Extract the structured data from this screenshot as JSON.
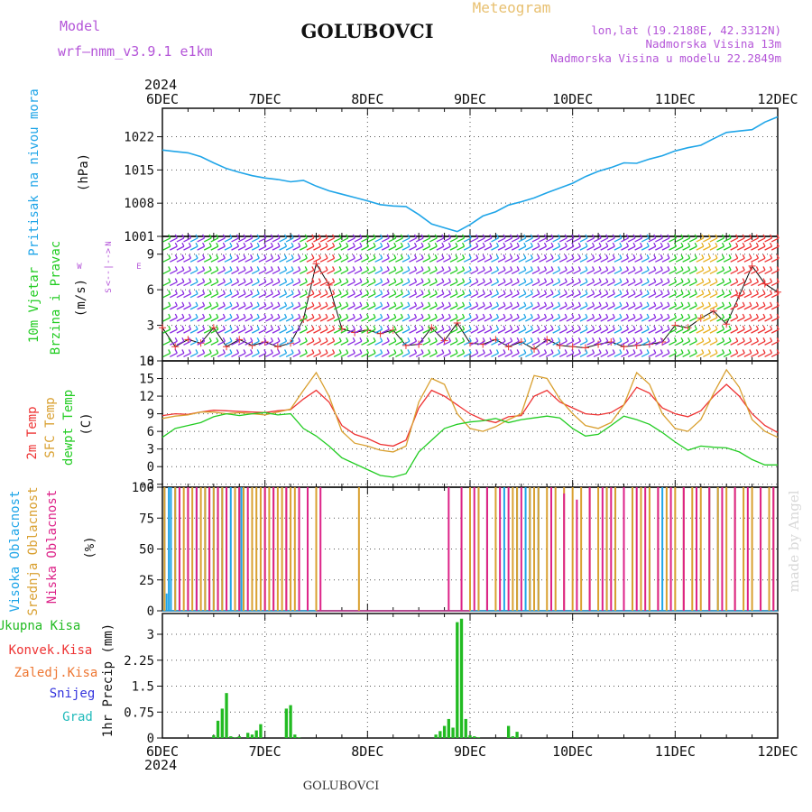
{
  "header": {
    "model_label": "Model",
    "model_name": "wrf—nmm_v3.9.1  e1km",
    "station": "GOLUBOVCI",
    "meteogram": "Meteogram",
    "lonlat": "lon,lat (19.2188E, 42.3312N)",
    "altitude": "Nadmorska Visina 13m",
    "model_altitude": "Nadmorska Visina u modelu 22.2849m",
    "footer_station": "GOLUBOVCI",
    "credit": "made by Angel"
  },
  "time_axis": {
    "year": "2024",
    "days": [
      "6DEC",
      "7DEC",
      "8DEC",
      "9DEC",
      "10DEC",
      "11DEC",
      "12DEC"
    ],
    "start_hours": 0,
    "end_hours": 144
  },
  "colors": {
    "pressure": "#1fa5e8",
    "temp2m": "#ee3333",
    "sfc": "#d9a030",
    "dewpt": "#22cc22",
    "vis": "#1fa5e8",
    "sred": "#d9a030",
    "nis": "#dd2288",
    "precip": "#22bb22",
    "label_purple": "#b455d8",
    "title_orange": "#e8c070"
  },
  "chart_data": [
    {
      "type": "line",
      "panel": "pressure",
      "ylabel_lines": [
        "Pritisak na nivou mora",
        "(hPa)"
      ],
      "ylim": [
        1001,
        1028
      ],
      "yticks": [
        1001,
        1008,
        1015,
        1022
      ],
      "grid": true,
      "series": [
        {
          "x": [
            0,
            3,
            6,
            9,
            12,
            15,
            18,
            21,
            24,
            27,
            30,
            33,
            36,
            39,
            42,
            45,
            48,
            51,
            54,
            57,
            60,
            63,
            66,
            69,
            72,
            75,
            78,
            81,
            84,
            87,
            90,
            93,
            96,
            99,
            102,
            105,
            108,
            111,
            114,
            117,
            120,
            123,
            126,
            129,
            132,
            135,
            138,
            141,
            144
          ],
          "values": [
            1019.2,
            1018.9,
            1018.6,
            1017.8,
            1016.5,
            1015.3,
            1014.5,
            1013.8,
            1013.3,
            1013.0,
            1012.5,
            1012.8,
            1011.6,
            1010.6,
            1009.9,
            1009.2,
            1008.5,
            1007.7,
            1007.4,
            1007.3,
            1005.6,
            1003.6,
            1002.8,
            1002.0,
            1003.5,
            1005.3,
            1006.2,
            1007.6,
            1008.3,
            1009.1,
            1010.2,
            1011.2,
            1012.2,
            1013.6,
            1014.7,
            1015.5,
            1016.5,
            1016.4,
            1017.3,
            1018.0,
            1019.0,
            1019.7,
            1020.2,
            1021.6,
            1022.9,
            1023.2,
            1023.5,
            1025.1,
            1026.2
          ]
        }
      ]
    },
    {
      "type": "barb",
      "panel": "wind",
      "ylabel_lines": [
        "10m Vjetar",
        "Brzina i Pravac",
        "(m/s)"
      ],
      "compass": [
        "N",
        "W",
        "E",
        "S"
      ],
      "ylim": [
        0,
        10.5
      ],
      "yticks": [
        0,
        3,
        6,
        9
      ],
      "grid": true,
      "series": [
        {
          "name": "speed",
          "x": [
            0,
            3,
            6,
            9,
            12,
            15,
            18,
            21,
            24,
            27,
            30,
            33,
            36,
            39,
            42,
            45,
            48,
            51,
            54,
            57,
            60,
            63,
            66,
            69,
            72,
            75,
            78,
            81,
            84,
            87,
            90,
            93,
            96,
            99,
            102,
            105,
            108,
            111,
            114,
            117,
            120,
            123,
            126,
            129,
            132,
            135,
            138,
            141,
            144
          ],
          "values": [
            2.8,
            1.2,
            1.8,
            1.5,
            2.8,
            1.2,
            1.8,
            1.3,
            1.6,
            1.2,
            1.5,
            3.5,
            8.2,
            6.4,
            2.7,
            2.4,
            2.6,
            2.3,
            2.6,
            1.3,
            1.4,
            2.8,
            1.7,
            3.2,
            1.5,
            1.4,
            1.8,
            1.2,
            1.6,
            1.0,
            1.8,
            1.3,
            1.2,
            1.1,
            1.4,
            1.6,
            1.2,
            1.3,
            1.4,
            1.6,
            3.0,
            2.8,
            3.6,
            4.2,
            3.1,
            5.5,
            8.0,
            6.5,
            5.8
          ]
        }
      ]
    },
    {
      "type": "line",
      "panel": "temperature",
      "ylabel_lines": [
        "2m Temp",
        "SFC Temp",
        "dewpt Temp",
        "(C)"
      ],
      "ylim": [
        -3.5,
        18
      ],
      "yticks": [
        -3,
        0,
        3,
        6,
        9,
        12,
        15,
        18
      ],
      "grid": true,
      "x": [
        0,
        3,
        6,
        9,
        12,
        15,
        18,
        21,
        24,
        27,
        30,
        33,
        36,
        39,
        42,
        45,
        48,
        51,
        54,
        57,
        60,
        63,
        66,
        69,
        72,
        75,
        78,
        81,
        84,
        87,
        90,
        93,
        96,
        99,
        102,
        105,
        108,
        111,
        114,
        117,
        120,
        123,
        126,
        129,
        132,
        135,
        138,
        141,
        144
      ],
      "series": [
        {
          "name": "2m Temp",
          "values": [
            8.7,
            9.0,
            8.9,
            9.3,
            9.6,
            9.5,
            9.4,
            9.3,
            9.2,
            9.5,
            9.7,
            11.5,
            13.0,
            11.0,
            7.0,
            5.5,
            4.8,
            3.8,
            3.5,
            4.5,
            10.0,
            13.0,
            12.0,
            10.5,
            9.0,
            8.0,
            7.5,
            8.5,
            8.7,
            12.0,
            13.0,
            11.0,
            10.0,
            9.0,
            8.8,
            9.2,
            10.5,
            13.5,
            12.5,
            10.0,
            9.0,
            8.5,
            9.5,
            12.0,
            14.0,
            12.0,
            9.0,
            7.0,
            5.8
          ]
        },
        {
          "name": "SFC Temp",
          "values": [
            8.2,
            8.6,
            8.8,
            9.3,
            9.3,
            9.0,
            9.2,
            9.0,
            8.8,
            9.3,
            9.8,
            13.0,
            16.0,
            12.0,
            6.0,
            4.0,
            3.5,
            2.8,
            2.5,
            3.5,
            11.0,
            15.0,
            14.0,
            9.0,
            6.5,
            6.0,
            6.8,
            8.0,
            9.0,
            15.5,
            15.0,
            11.5,
            9.0,
            7.0,
            6.5,
            7.5,
            10.5,
            16.0,
            14.0,
            9.0,
            6.5,
            6.0,
            8.0,
            12.5,
            16.5,
            13.5,
            8.0,
            6.0,
            5.0
          ]
        },
        {
          "name": "dewpt Temp",
          "values": [
            5.0,
            6.5,
            7.0,
            7.5,
            8.5,
            9.0,
            8.7,
            9.0,
            9.2,
            8.8,
            9.0,
            6.5,
            5.2,
            3.5,
            1.5,
            0.5,
            -0.5,
            -1.5,
            -1.8,
            -1.2,
            2.5,
            4.5,
            6.5,
            7.2,
            7.6,
            7.8,
            8.2,
            7.5,
            8.0,
            8.3,
            8.6,
            8.3,
            6.5,
            5.2,
            5.5,
            7.0,
            8.6,
            8.0,
            7.2,
            5.8,
            4.2,
            2.8,
            3.5,
            3.3,
            3.2,
            2.5,
            1.2,
            0.3,
            0.3
          ]
        }
      ]
    },
    {
      "type": "bar",
      "panel": "clouds",
      "ylabel_lines": [
        "Visoka Oblacnost",
        "Srednja Oblacnost",
        "Niska Oblacnost",
        "(%)"
      ],
      "ylim": [
        0,
        100
      ],
      "yticks": [
        0,
        25,
        50,
        75,
        100
      ],
      "grid": true,
      "series": [
        {
          "name": "Visoka Oblacnost",
          "x": [
            0.5,
            1.5,
            1.0,
            2,
            3,
            8,
            10,
            12,
            14,
            16,
            18,
            18.5,
            19,
            70,
            72,
            74,
            76,
            80,
            83,
            85,
            86,
            88,
            104,
            106,
            110,
            114,
            117,
            128,
            130
          ],
          "values": [
            100,
            100,
            14,
            100,
            100,
            100,
            100,
            100,
            100,
            100,
            100,
            100,
            100,
            100,
            100,
            100,
            100,
            100,
            100,
            100,
            100,
            100,
            100,
            100,
            100,
            50,
            100,
            100,
            100
          ]
        },
        {
          "name": "Srednja Oblacnost",
          "x": [
            0.5,
            3,
            4,
            5,
            6,
            7,
            9,
            10,
            11,
            12,
            13,
            14,
            15,
            17,
            18,
            19,
            21,
            22,
            23,
            24,
            25,
            26,
            27,
            28,
            29,
            30,
            31,
            36,
            46,
            70,
            72,
            74,
            76,
            78,
            82,
            83,
            86,
            87,
            88,
            90,
            92,
            94,
            96,
            98,
            100,
            102,
            104,
            106,
            108,
            110,
            112,
            114,
            116,
            118,
            120,
            122,
            124,
            126,
            128,
            130,
            132,
            134,
            136,
            138,
            140,
            142,
            143
          ],
          "values": [
            100,
            100,
            78,
            100,
            100,
            100,
            100,
            100,
            100,
            100,
            100,
            100,
            100,
            100,
            100,
            100,
            100,
            100,
            100,
            100,
            100,
            100,
            100,
            100,
            100,
            100,
            100,
            100,
            100,
            100,
            100,
            100,
            100,
            100,
            100,
            100,
            100,
            100,
            100,
            100,
            100,
            100,
            100,
            100,
            100,
            100,
            100,
            100,
            100,
            100,
            100,
            100,
            100,
            100,
            100,
            100,
            100,
            100,
            100,
            100,
            100,
            100,
            100,
            100,
            100,
            100,
            100
          ]
        },
        {
          "name": "Niska Oblacnost",
          "x": [
            4,
            6,
            8,
            11,
            13,
            15,
            18,
            20,
            24,
            26,
            29,
            32,
            34,
            37,
            67,
            70,
            73,
            76,
            79,
            81,
            84,
            91,
            94,
            97,
            100,
            103,
            105,
            108,
            111,
            113,
            116,
            119,
            122,
            125,
            128,
            131,
            134,
            137,
            140,
            143
          ],
          "values": [
            100,
            100,
            100,
            100,
            100,
            100,
            100,
            100,
            100,
            100,
            100,
            100,
            100,
            100,
            100,
            100,
            100,
            100,
            100,
            100,
            100,
            100,
            95,
            90,
            100,
            100,
            100,
            100,
            100,
            100,
            100,
            100,
            100,
            100,
            100,
            100,
            100,
            100,
            100,
            100
          ]
        }
      ]
    },
    {
      "type": "bar",
      "panel": "precip",
      "ylabel_lines": [
        "1hr Precip (mm)"
      ],
      "legend": [
        "Ukupna Kisa",
        "Konvek.Kisa",
        "Zaledj.Kisa",
        "Snijeg",
        "Grad"
      ],
      "ylim": [
        0,
        3.6
      ],
      "yticks": [
        0,
        0.75,
        1.5,
        2.25,
        3
      ],
      "grid": true,
      "series": [
        {
          "name": "Ukupna Kisa",
          "x": [
            12,
            13,
            14,
            15,
            16,
            17,
            18,
            20,
            21,
            22,
            23,
            29,
            30,
            31,
            32,
            64,
            65,
            66,
            67,
            68,
            69,
            70,
            71,
            72,
            73,
            74,
            81,
            82,
            83
          ],
          "values": [
            0.08,
            0.5,
            0.85,
            1.3,
            0.05,
            0.02,
            0.05,
            0.15,
            0.1,
            0.22,
            0.4,
            0.85,
            0.95,
            0.1,
            0.02,
            0.1,
            0.2,
            0.35,
            0.55,
            0.3,
            3.35,
            3.45,
            0.55,
            0.08,
            0.05,
            0.02,
            0.35,
            0.05,
            0.18
          ]
        }
      ]
    }
  ]
}
